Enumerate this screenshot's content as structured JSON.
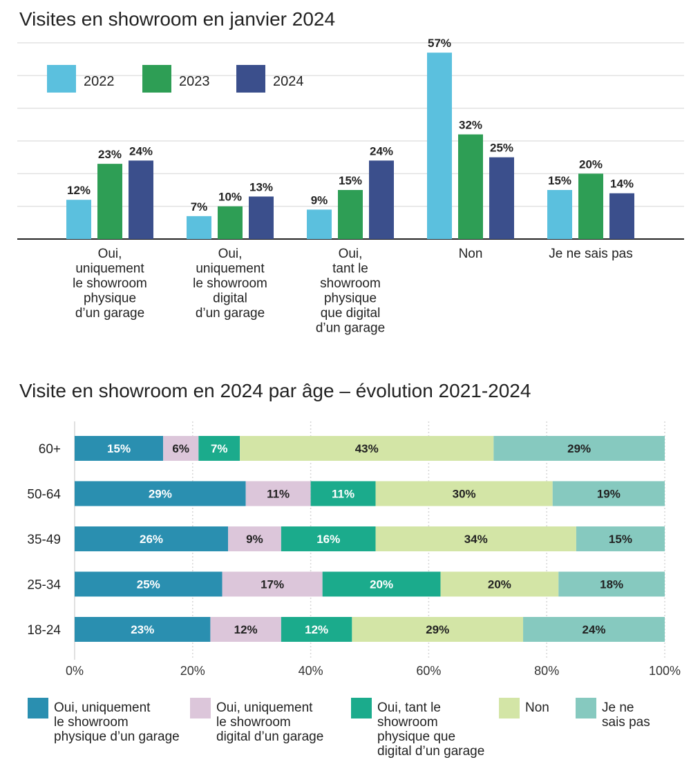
{
  "chart_data": [
    {
      "type": "bar",
      "title": "Visites en showroom en janvier 2024",
      "categories": [
        [
          "Oui,",
          "uniquement",
          "le showroom",
          "physique",
          "d’un garage"
        ],
        [
          "Oui,",
          "uniquement",
          "le showroom",
          "digital",
          "d’un garage"
        ],
        [
          "Oui,",
          "tant le",
          "showroom",
          "physique",
          "que digital",
          "d’un garage"
        ],
        [
          "Non"
        ],
        [
          "Je ne sais pas"
        ]
      ],
      "series": [
        {
          "name": "2022",
          "color": "#5bc0de",
          "values": [
            12,
            7,
            9,
            57,
            15
          ],
          "labels": [
            "12%",
            "7%",
            "9%",
            "57%",
            "15%"
          ]
        },
        {
          "name": "2023",
          "color": "#2e9e55",
          "values": [
            23,
            10,
            15,
            32,
            20
          ],
          "labels": [
            "23%",
            "10%",
            "15%",
            "32%",
            "20%"
          ]
        },
        {
          "name": "2024",
          "color": "#3b4f8c",
          "values": [
            24,
            13,
            24,
            25,
            14
          ],
          "labels": [
            "24%",
            "13%",
            "24%",
            "25%",
            "14%"
          ]
        }
      ],
      "ylim": [
        0,
        60
      ],
      "grid": true,
      "legend": "top-left"
    },
    {
      "type": "bar",
      "orientation": "horizontal-stacked",
      "title": "Visite en showroom en 2024 par âge – évolution 2021-2024",
      "categories": [
        "60+",
        "50-64",
        "35-49",
        "25-34",
        "18-24"
      ],
      "series": [
        {
          "name": "Oui, uniquement le showroom physique d’un garage",
          "legend_lines": [
            "Oui, uniquement",
            "le showroom",
            "physique d’un garage"
          ],
          "color": "#2a8fb0",
          "text_color": "#ffffff",
          "values": [
            15,
            29,
            26,
            25,
            23
          ],
          "labels": [
            "15%",
            "29%",
            "26%",
            "25%",
            "23%"
          ]
        },
        {
          "name": "Oui, uniquement le showroom digital d’un garage",
          "legend_lines": [
            "Oui, uniquement",
            "le showroom",
            "digital d’un garage"
          ],
          "color": "#dcc6da",
          "text_color": "#222222",
          "values": [
            6,
            11,
            9,
            17,
            12
          ],
          "labels": [
            "6%",
            "11%",
            "9%",
            "17%",
            "12%"
          ]
        },
        {
          "name": "Oui, tant le showroom physique que digital d’un garage",
          "legend_lines": [
            "Oui, tant le",
            "showroom",
            "physique que",
            "digital d’un garage"
          ],
          "color": "#1bab8c",
          "text_color": "#ffffff",
          "values": [
            7,
            11,
            16,
            20,
            12
          ],
          "labels": [
            "7%",
            "11%",
            "16%",
            "20%",
            "12%"
          ]
        },
        {
          "name": "Non",
          "legend_lines": [
            "Non"
          ],
          "color": "#d3e5a6",
          "text_color": "#222222",
          "values": [
            43,
            30,
            34,
            20,
            29
          ],
          "labels": [
            "43%",
            "30%",
            "34%",
            "20%",
            "29%"
          ]
        },
        {
          "name": "Je ne sais pas",
          "legend_lines": [
            "Je ne",
            "sais pas"
          ],
          "color": "#86c9bf",
          "text_color": "#222222",
          "values": [
            29,
            19,
            15,
            18,
            24
          ],
          "labels": [
            "29%",
            "19%",
            "15%",
            "18%",
            "24%"
          ]
        }
      ],
      "xlim": [
        0,
        100
      ],
      "xticks": [
        "0%",
        "20%",
        "40%",
        "60%",
        "80%",
        "100%"
      ],
      "grid": true,
      "legend": "bottom"
    }
  ]
}
